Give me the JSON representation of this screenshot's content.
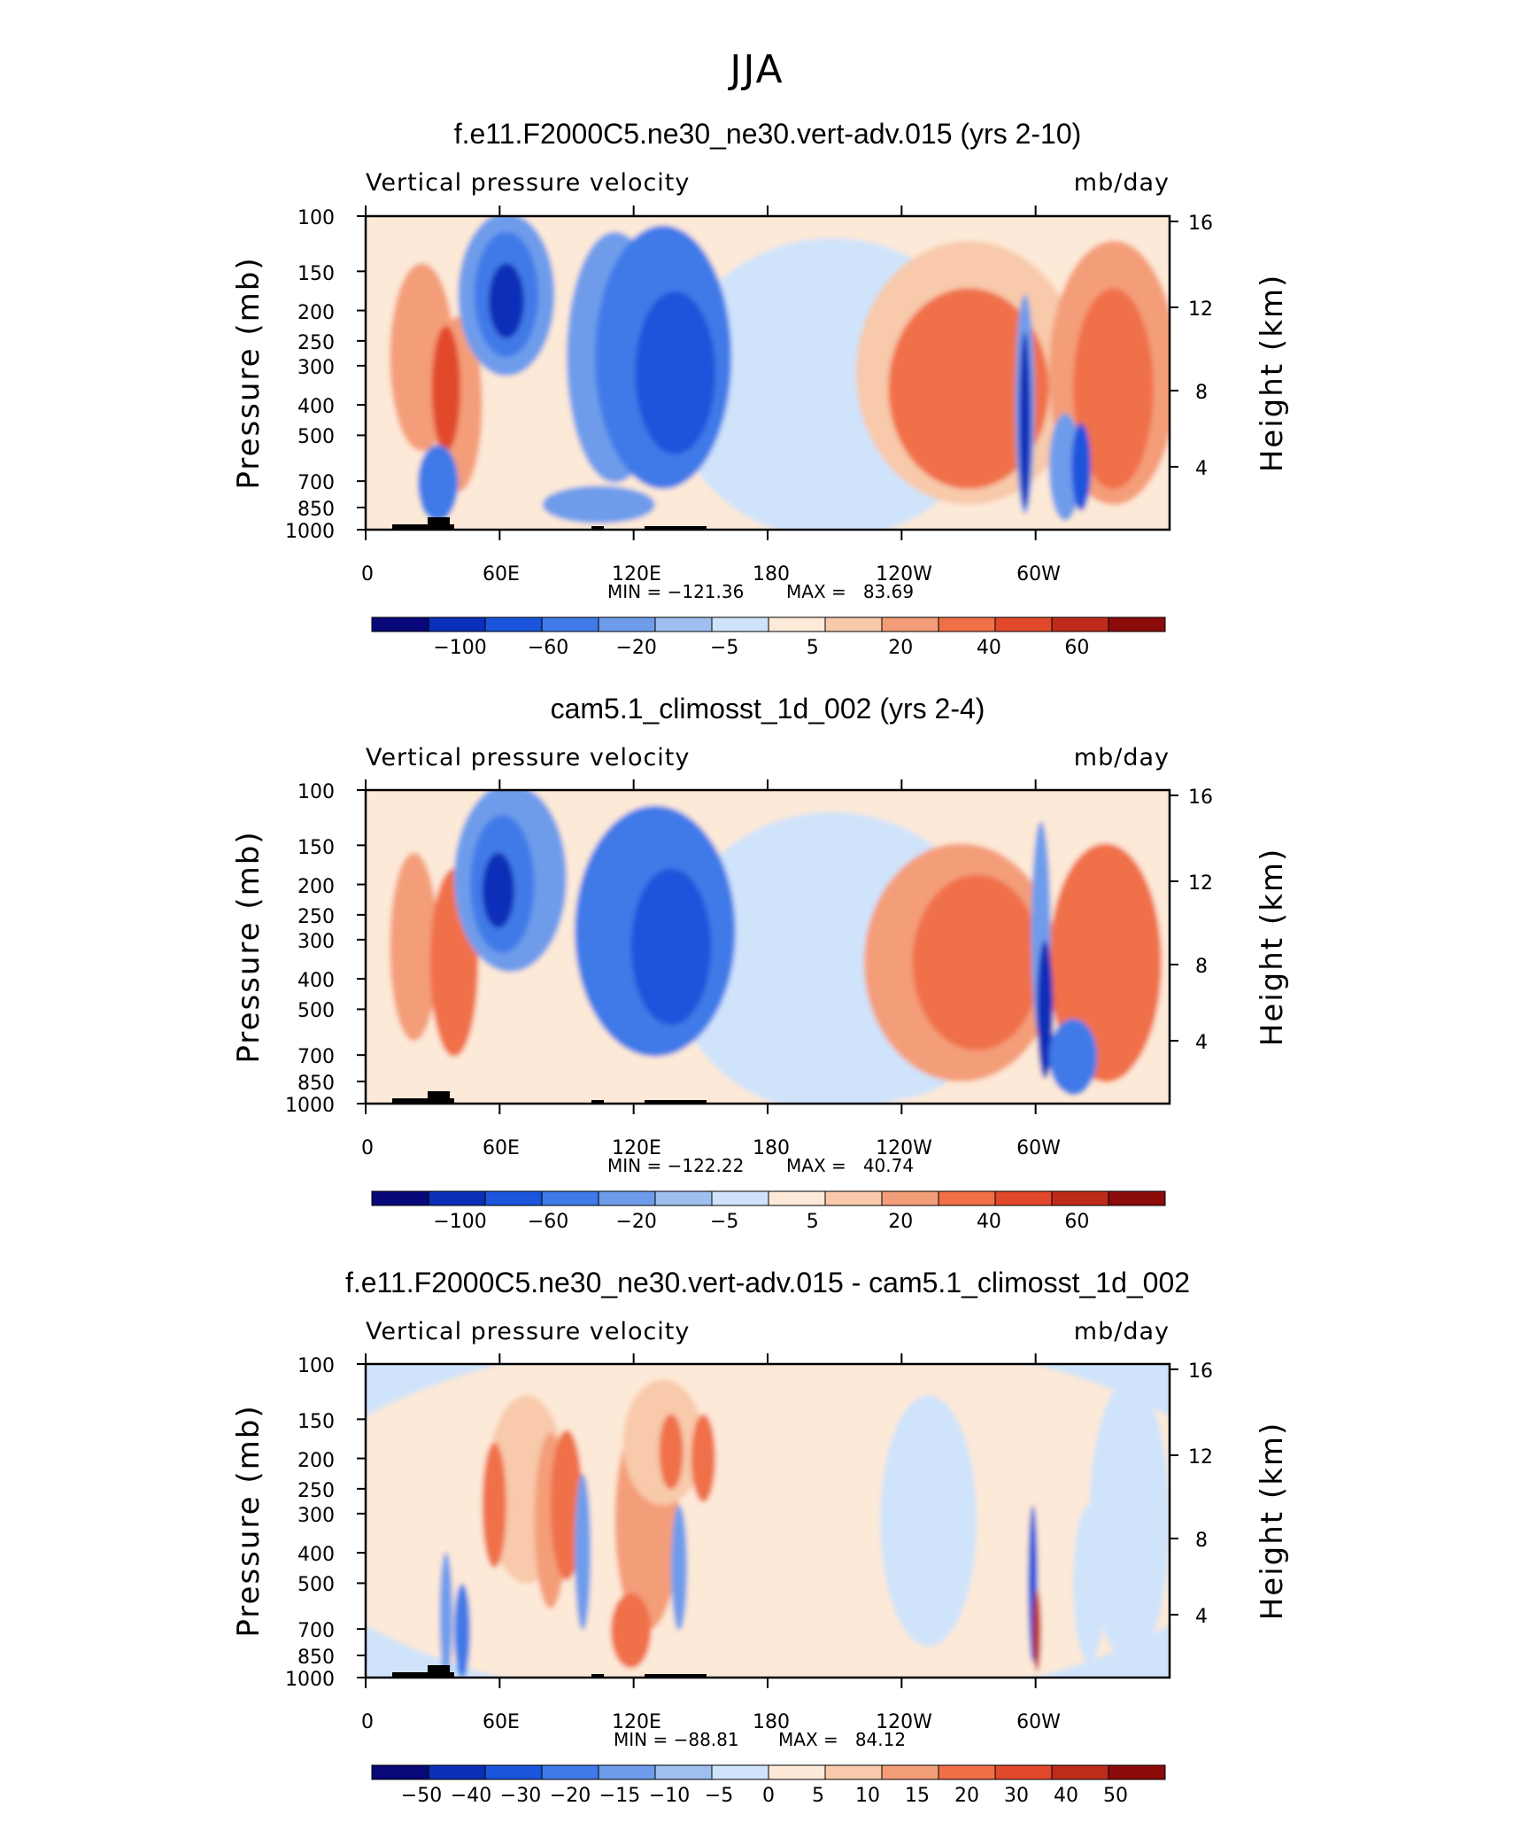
{
  "figure_title": "JJA",
  "colors": {
    "scale": [
      "#08087a",
      "#0a2fb8",
      "#1a55dc",
      "#3f7ae8",
      "#6e9ceb",
      "#9ebfef",
      "#cfe3fb",
      "#fde9d7",
      "#f8c9aa",
      "#f49d79",
      "#f07048",
      "#e2492b",
      "#bf2b1b",
      "#8c0b0b"
    ],
    "terrain": "#000000"
  },
  "chart_data": [
    {
      "type": "heatmap",
      "title": "f.e11.F2000C5.ne30_ne30.vert-adv.015 (yrs 2-10)",
      "left_label": "Vertical pressure velocity",
      "right_label": "mb/day",
      "ylabel": "Pressure (mb)",
      "ylabel2": "Height (km)",
      "y_ticks": [
        "100",
        "150",
        "200",
        "250",
        "300",
        "400",
        "500",
        "700",
        "850",
        "1000"
      ],
      "y2_ticks": [
        "16",
        "12",
        "8",
        "4"
      ],
      "x_ticks": [
        "0",
        "60E",
        "120E",
        "180",
        "120W",
        "60W"
      ],
      "min_label": "MIN = −121.36",
      "max_label": "MAX =   83.69",
      "min": -121.36,
      "max": 83.69,
      "colorbar_labels": [
        "−100",
        "−60",
        "−20",
        "−5",
        "5",
        "20",
        "40",
        "60"
      ]
    },
    {
      "type": "heatmap",
      "title": "cam5.1_climosst_1d_002 (yrs 2-4)",
      "left_label": "Vertical pressure velocity",
      "right_label": "mb/day",
      "ylabel": "Pressure (mb)",
      "ylabel2": "Height (km)",
      "y_ticks": [
        "100",
        "150",
        "200",
        "250",
        "300",
        "400",
        "500",
        "700",
        "850",
        "1000"
      ],
      "y2_ticks": [
        "16",
        "12",
        "8",
        "4"
      ],
      "x_ticks": [
        "0",
        "60E",
        "120E",
        "180",
        "120W",
        "60W"
      ],
      "min_label": "MIN = −122.22",
      "max_label": "MAX =   40.74",
      "min": -122.22,
      "max": 40.74,
      "colorbar_labels": [
        "−100",
        "−60",
        "−20",
        "−5",
        "5",
        "20",
        "40",
        "60"
      ]
    },
    {
      "type": "heatmap",
      "title": "f.e11.F2000C5.ne30_ne30.vert-adv.015 - cam5.1_climosst_1d_002",
      "left_label": "Vertical pressure velocity",
      "right_label": "mb/day",
      "ylabel": "Pressure (mb)",
      "ylabel2": "Height (km)",
      "y_ticks": [
        "100",
        "150",
        "200",
        "250",
        "300",
        "400",
        "500",
        "700",
        "850",
        "1000"
      ],
      "y2_ticks": [
        "16",
        "12",
        "8",
        "4"
      ],
      "x_ticks": [
        "0",
        "60E",
        "120E",
        "180",
        "120W",
        "60W"
      ],
      "min_label": "MIN = −88.81",
      "max_label": "MAX =   84.12",
      "min": -88.81,
      "max": 84.12,
      "colorbar_labels": [
        "−50",
        "−40",
        "−30",
        "−20",
        "−15",
        "−10",
        "−5",
        "0",
        "5",
        "10",
        "15",
        "20",
        "30",
        "40",
        "50"
      ]
    }
  ]
}
